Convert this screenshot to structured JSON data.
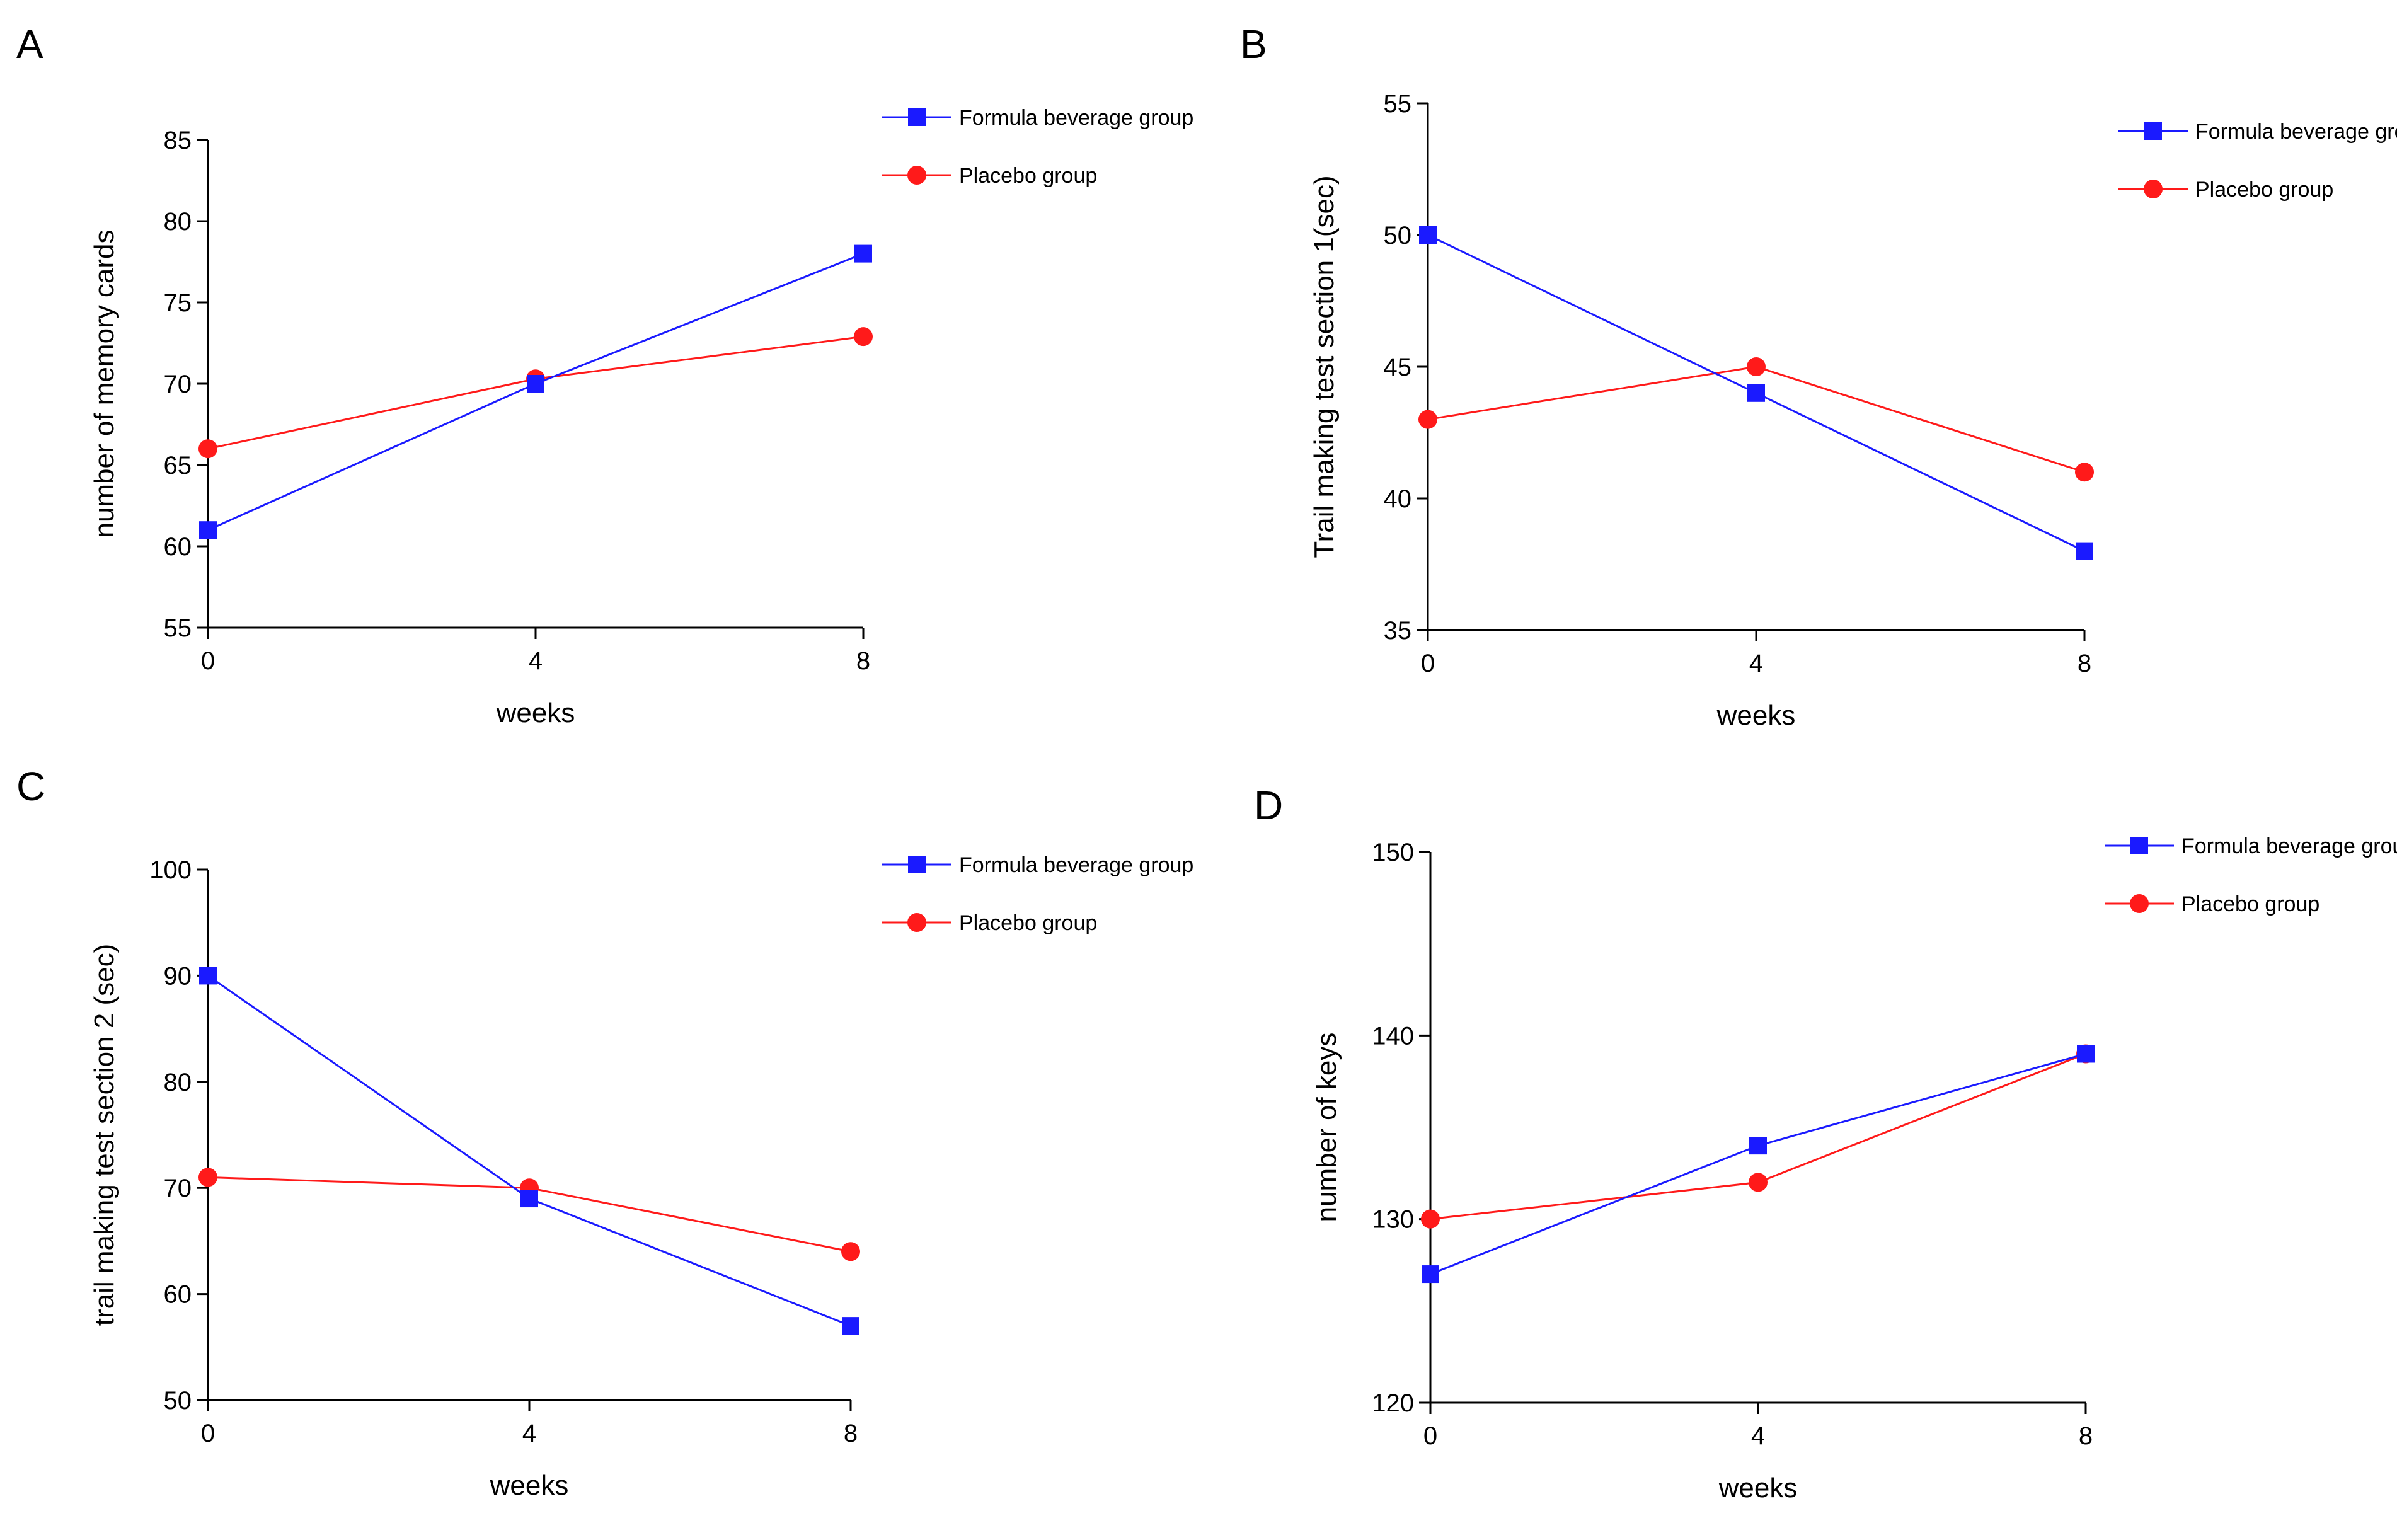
{
  "colors": {
    "formula": "#1a1aff",
    "placebo": "#ff1a1a",
    "axis": "#000000"
  },
  "legend_markers": {
    "formula": "square",
    "placebo": "circle"
  },
  "chart_data": [
    {
      "panel": "A",
      "type": "line",
      "xlabel": "weeks",
      "ylabel": "number of memory cards",
      "x": [
        0,
        4,
        8
      ],
      "xticks": [
        "0",
        "4",
        "8"
      ],
      "ylim": [
        55,
        85
      ],
      "yticks": [
        55,
        60,
        65,
        70,
        75,
        80,
        85
      ],
      "grid": false,
      "legend_position": "top-right",
      "series": [
        {
          "name": "Formula beverage group",
          "values": [
            61,
            70,
            78
          ]
        },
        {
          "name": "Placebo group",
          "values": [
            66,
            70.3,
            72.9
          ]
        }
      ]
    },
    {
      "panel": "B",
      "type": "line",
      "xlabel": "weeks",
      "ylabel": "Trail making test section 1(sec)",
      "x": [
        0,
        4,
        8
      ],
      "xticks": [
        "0",
        "4",
        "8"
      ],
      "ylim": [
        35,
        55
      ],
      "yticks": [
        35,
        40,
        45,
        50,
        55
      ],
      "grid": false,
      "legend_position": "top-right",
      "series": [
        {
          "name": "Formula beverage group",
          "values": [
            50,
            44,
            38
          ]
        },
        {
          "name": "Placebo group",
          "values": [
            43,
            45,
            41
          ]
        }
      ]
    },
    {
      "panel": "C",
      "type": "line",
      "xlabel": "weeks",
      "ylabel": "trail making test section 2 (sec)",
      "x": [
        0,
        4,
        8
      ],
      "xticks": [
        "0",
        "4",
        "8"
      ],
      "ylim": [
        50,
        100
      ],
      "yticks": [
        50,
        60,
        70,
        80,
        90,
        100
      ],
      "grid": false,
      "legend_position": "top-right",
      "series": [
        {
          "name": "Formula beverage group",
          "values": [
            90,
            69,
            57
          ]
        },
        {
          "name": "Placebo group",
          "values": [
            71,
            70,
            64
          ]
        }
      ]
    },
    {
      "panel": "D",
      "type": "line",
      "xlabel": "weeks",
      "ylabel": "number of keys",
      "x": [
        0,
        4,
        8
      ],
      "xticks": [
        "0",
        "4",
        "8"
      ],
      "ylim": [
        120,
        150
      ],
      "yticks": [
        120,
        130,
        140,
        150
      ],
      "grid": false,
      "legend_position": "top-right",
      "series": [
        {
          "name": "Formula beverage group",
          "values": [
            127,
            134,
            139
          ]
        },
        {
          "name": "Placebo group",
          "values": [
            130,
            132,
            139
          ]
        }
      ]
    }
  ]
}
